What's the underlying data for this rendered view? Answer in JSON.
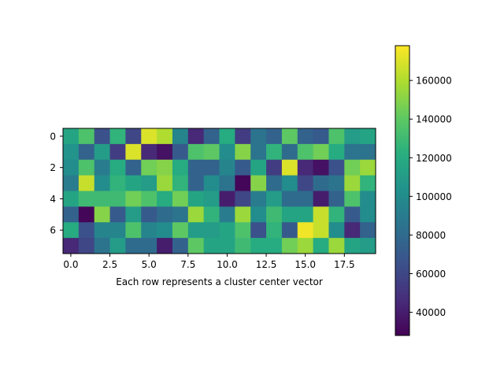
{
  "chart_data": {
    "type": "heatmap",
    "title": "",
    "xlabel": "Each row represents a cluster center vector",
    "ylabel": "",
    "colormap": "viridis",
    "vmin": 28000,
    "vmax": 178000,
    "x_ticks": [
      "0.0",
      "2.5",
      "5.0",
      "7.5",
      "10.0",
      "12.5",
      "15.0",
      "17.5"
    ],
    "y_ticks": [
      "0",
      "2",
      "4",
      "6"
    ],
    "colorbar_ticks": [
      "40000",
      "60000",
      "80000",
      "100000",
      "120000",
      "140000",
      "160000"
    ],
    "values": [
      [
        115000,
        135000,
        65000,
        125000,
        60000,
        170000,
        160000,
        95000,
        45000,
        75000,
        120000,
        55000,
        85000,
        75000,
        140000,
        75000,
        70000,
        135000,
        110000,
        115000
      ],
      [
        105000,
        75000,
        110000,
        55000,
        170000,
        45000,
        35000,
        70000,
        135000,
        140000,
        100000,
        150000,
        85000,
        125000,
        80000,
        135000,
        145000,
        120000,
        85000,
        85000
      ],
      [
        100000,
        135000,
        90000,
        120000,
        75000,
        145000,
        150000,
        120000,
        75000,
        75000,
        95000,
        70000,
        115000,
        55000,
        170000,
        45000,
        35000,
        65000,
        145000,
        155000
      ],
      [
        90000,
        165000,
        100000,
        125000,
        115000,
        110000,
        155000,
        125000,
        75000,
        100000,
        85000,
        30000,
        150000,
        80000,
        100000,
        60000,
        80000,
        85000,
        155000,
        125000
      ],
      [
        115000,
        130000,
        130000,
        130000,
        145000,
        135000,
        120000,
        145000,
        115000,
        110000,
        40000,
        60000,
        90000,
        110000,
        80000,
        80000,
        40000,
        75000,
        135000,
        100000
      ],
      [
        75000,
        30000,
        150000,
        70000,
        110000,
        70000,
        80000,
        85000,
        155000,
        125000,
        90000,
        155000,
        100000,
        130000,
        115000,
        115000,
        165000,
        125000,
        70000,
        100000
      ],
      [
        120000,
        65000,
        95000,
        95000,
        135000,
        95000,
        100000,
        140000,
        110000,
        110000,
        115000,
        135000,
        65000,
        125000,
        70000,
        175000,
        165000,
        100000,
        45000,
        75000
      ],
      [
        45000,
        60000,
        85000,
        110000,
        80000,
        80000,
        40000,
        75000,
        140000,
        115000,
        115000,
        130000,
        120000,
        120000,
        145000,
        155000,
        120000,
        155000,
        115000,
        110000
      ]
    ]
  }
}
